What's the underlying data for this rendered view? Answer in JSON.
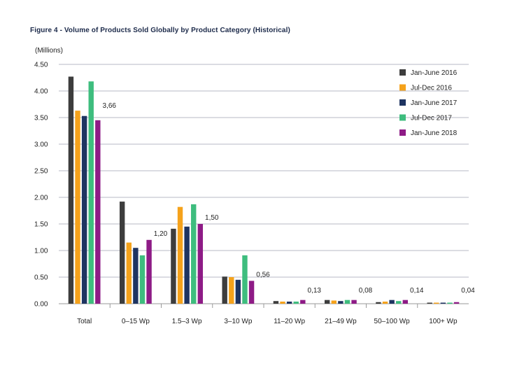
{
  "chart_data": {
    "type": "bar",
    "title": "Figure 4 - Volume of Products Sold Globally by Product Category (Historical)",
    "unit_label": "(Millions)",
    "ylim": [
      0,
      4.5
    ],
    "yticks": [
      "0.00",
      "0.50",
      "1.00",
      "1.50",
      "2.00",
      "2.50",
      "3.00",
      "3.50",
      "4.00",
      "4.50"
    ],
    "grid": true,
    "legend_position": "top-right",
    "categories": [
      "Total",
      "0-15 Wp",
      "1.5-3 Wp",
      "3-10 Wp",
      "11-20 Wp",
      "21-49 Wp",
      "50-100 Wp",
      "100+ Wp"
    ],
    "series": [
      {
        "name": "Jan-June 2016",
        "color": "#3d3d3d",
        "values": [
          4.27,
          1.92,
          1.41,
          0.51,
          0.05,
          0.07,
          0.03,
          0.02
        ]
      },
      {
        "name": "Jul-Dec 2016",
        "color": "#f5a21b",
        "values": [
          3.63,
          1.15,
          1.82,
          0.5,
          0.04,
          0.06,
          0.04,
          0.02
        ]
      },
      {
        "name": "Jan-June 2017",
        "color": "#1e3461",
        "values": [
          3.53,
          1.05,
          1.45,
          0.45,
          0.04,
          0.05,
          0.07,
          0.02
        ]
      },
      {
        "name": "Jul-Dec 2017",
        "color": "#3ebd7e",
        "values": [
          4.18,
          0.91,
          1.87,
          0.91,
          0.04,
          0.07,
          0.05,
          0.02
        ]
      },
      {
        "name": "Jan-June 2018",
        "color": "#8e1b86",
        "values": [
          3.45,
          1.2,
          1.5,
          0.43,
          0.07,
          0.07,
          0.07,
          0.03
        ]
      }
    ],
    "annotations": [
      "3,66",
      "1,20",
      "1,50",
      "0,56",
      "0,13",
      "0,08",
      "0,14",
      "0,04"
    ]
  }
}
